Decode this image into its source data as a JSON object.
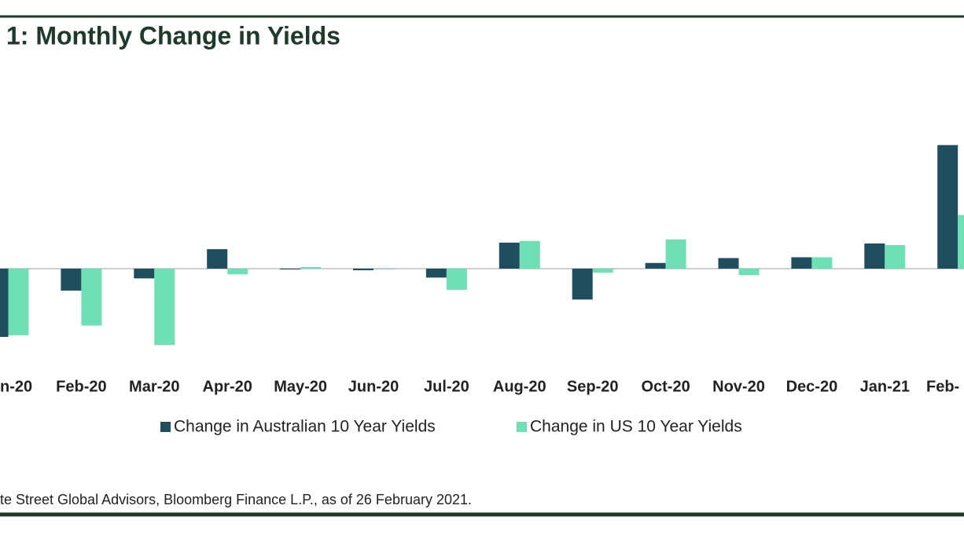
{
  "chart_data": {
    "type": "bar",
    "title": "1: Monthly Change in Yields",
    "categories": [
      "n-20",
      "Feb-20",
      "Mar-20",
      "Apr-20",
      "May-20",
      "Jun-20",
      "Jul-20",
      "Aug-20",
      "Sep-20",
      "Oct-20",
      "Nov-20",
      "Dec-20",
      "Jan-21",
      "Feb-"
    ],
    "series": [
      {
        "name": "Change in Australian 10 Year Yields",
        "color": "#1f4e5f",
        "values": [
          -0.42,
          -0.135,
          -0.06,
          0.12,
          -0.005,
          -0.01,
          -0.055,
          0.16,
          -0.19,
          0.035,
          0.065,
          0.07,
          0.155,
          0.76
        ]
      },
      {
        "name": "Change in US 10 Year Yields",
        "color": "#6ee0b4",
        "values": [
          -0.41,
          -0.35,
          -0.47,
          -0.035,
          0.01,
          0,
          -0.13,
          0.17,
          -0.025,
          0.18,
          -0.04,
          0.07,
          0.145,
          0.33
        ]
      }
    ],
    "source": "te Street Global Advisors, Bloomberg Finance L.P., as of 26 February 2021."
  }
}
